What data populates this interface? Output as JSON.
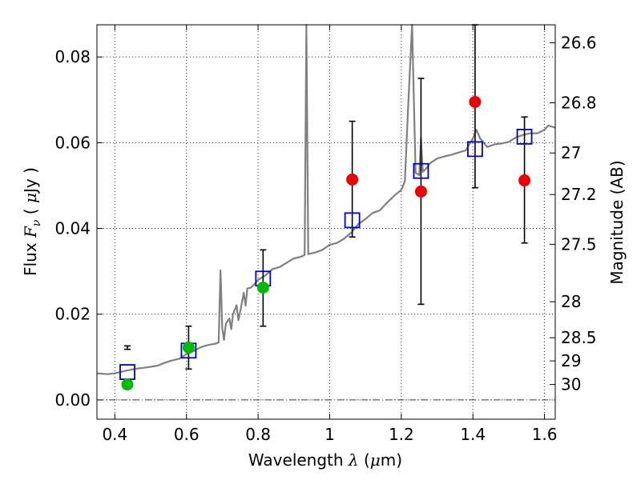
{
  "chart_data": {
    "type": "scatter",
    "title": "",
    "xlabel_parts": [
      "Wavelength  ",
      "λ",
      " (",
      "μ",
      "m)"
    ],
    "ylabel_parts": [
      "Flux  ",
      "F",
      "ν",
      "  ( ",
      "μ",
      "Jy )"
    ],
    "y2label": "Magnitude (AB)",
    "xlim": [
      0.35,
      1.63
    ],
    "ylim": [
      -0.0045,
      0.0875
    ],
    "grid": true,
    "x_ticks": [
      {
        "value": 0.4,
        "label": "0.4"
      },
      {
        "value": 0.6,
        "label": "0.6"
      },
      {
        "value": 0.8,
        "label": "0.8"
      },
      {
        "value": 1.0,
        "label": "1"
      },
      {
        "value": 1.2,
        "label": "1.2"
      },
      {
        "value": 1.4,
        "label": "1.4"
      },
      {
        "value": 1.6,
        "label": "1.6"
      }
    ],
    "y_ticks": [
      {
        "value": 0.0,
        "label": "0.00"
      },
      {
        "value": 0.02,
        "label": "0.02"
      },
      {
        "value": 0.04,
        "label": "0.04"
      },
      {
        "value": 0.06,
        "label": "0.06"
      },
      {
        "value": 0.08,
        "label": "0.08"
      }
    ],
    "y2_ticks": [
      {
        "flux": 0.0833,
        "label": "26.6"
      },
      {
        "flux": 0.0693,
        "label": "26.8"
      },
      {
        "flux": 0.0576,
        "label": "27"
      },
      {
        "flux": 0.0479,
        "label": "27.2"
      },
      {
        "flux": 0.0363,
        "label": "27.5"
      },
      {
        "flux": 0.0229,
        "label": "28"
      },
      {
        "flux": 0.0145,
        "label": "28.5"
      },
      {
        "flux": 0.0091,
        "label": "29"
      },
      {
        "flux": 0.0036,
        "label": "30"
      }
    ],
    "sed_model": {
      "color": "#808080",
      "points": [
        [
          0.35,
          0.0062
        ],
        [
          0.38,
          0.006
        ],
        [
          0.4,
          0.0062
        ],
        [
          0.43,
          0.0068
        ],
        [
          0.46,
          0.0073
        ],
        [
          0.49,
          0.0076
        ],
        [
          0.52,
          0.008
        ],
        [
          0.54,
          0.0087
        ],
        [
          0.56,
          0.0092
        ],
        [
          0.58,
          0.0096
        ],
        [
          0.6,
          0.0107
        ],
        [
          0.62,
          0.0114
        ],
        [
          0.64,
          0.0123
        ],
        [
          0.66,
          0.0128
        ],
        [
          0.68,
          0.0131
        ],
        [
          0.69,
          0.0134
        ],
        [
          0.695,
          0.0302
        ],
        [
          0.7,
          0.0167
        ],
        [
          0.705,
          0.014
        ],
        [
          0.71,
          0.0178
        ],
        [
          0.72,
          0.019
        ],
        [
          0.725,
          0.0165
        ],
        [
          0.73,
          0.02
        ],
        [
          0.74,
          0.0221
        ],
        [
          0.745,
          0.0186
        ],
        [
          0.75,
          0.0206
        ],
        [
          0.76,
          0.025
        ],
        [
          0.765,
          0.022
        ],
        [
          0.77,
          0.026
        ],
        [
          0.78,
          0.0262
        ],
        [
          0.79,
          0.027
        ],
        [
          0.8,
          0.028
        ],
        [
          0.82,
          0.029
        ],
        [
          0.84,
          0.0305
        ],
        [
          0.86,
          0.031
        ],
        [
          0.88,
          0.032
        ],
        [
          0.9,
          0.033
        ],
        [
          0.92,
          0.0334
        ],
        [
          0.93,
          0.0338
        ],
        [
          0.935,
          0.088
        ],
        [
          0.94,
          0.034
        ],
        [
          0.96,
          0.0344
        ],
        [
          0.98,
          0.035
        ],
        [
          1.0,
          0.0362
        ],
        [
          1.02,
          0.0366
        ],
        [
          1.04,
          0.0376
        ],
        [
          1.06,
          0.039
        ],
        [
          1.08,
          0.041
        ],
        [
          1.1,
          0.0422
        ],
        [
          1.12,
          0.0436
        ],
        [
          1.14,
          0.0442
        ],
        [
          1.16,
          0.046
        ],
        [
          1.18,
          0.0476
        ],
        [
          1.2,
          0.049
        ],
        [
          1.21,
          0.051
        ],
        [
          1.22,
          0.07
        ],
        [
          1.23,
          0.088
        ],
        [
          1.24,
          0.053
        ],
        [
          1.25,
          0.0524
        ],
        [
          1.255,
          0.061
        ],
        [
          1.26,
          0.0532
        ],
        [
          1.27,
          0.054
        ],
        [
          1.28,
          0.0552
        ],
        [
          1.3,
          0.0563
        ],
        [
          1.32,
          0.0568
        ],
        [
          1.34,
          0.0572
        ],
        [
          1.36,
          0.0577
        ],
        [
          1.38,
          0.0582
        ],
        [
          1.4,
          0.061
        ],
        [
          1.41,
          0.063
        ],
        [
          1.42,
          0.061
        ],
        [
          1.44,
          0.059
        ],
        [
          1.46,
          0.0596
        ],
        [
          1.48,
          0.0598
        ],
        [
          1.5,
          0.0602
        ],
        [
          1.52,
          0.0612
        ],
        [
          1.54,
          0.0618
        ],
        [
          1.56,
          0.0622
        ],
        [
          1.58,
          0.0622
        ],
        [
          1.6,
          0.063
        ],
        [
          1.61,
          0.064
        ],
        [
          1.63,
          0.0635
        ]
      ]
    },
    "series": [
      {
        "marker": "square",
        "color": "#0000cc",
        "points": [
          {
            "x": 0.435,
            "y": 0.0065
          },
          {
            "x": 0.606,
            "y": 0.0115
          },
          {
            "x": 0.814,
            "y": 0.0283
          },
          {
            "x": 1.063,
            "y": 0.0419
          },
          {
            "x": 1.255,
            "y": 0.0534
          },
          {
            "x": 1.406,
            "y": 0.0585
          },
          {
            "x": 1.544,
            "y": 0.0614
          }
        ]
      },
      {
        "marker": "circle",
        "color": "#00bb00",
        "points": [
          {
            "x": 0.435,
            "y": 0.0036,
            "err_low": 0.0126,
            "err_high": 0.0118
          },
          {
            "x": 0.606,
            "y": 0.0122,
            "err_low": 0.0072,
            "err_high": 0.0172
          },
          {
            "x": 0.814,
            "y": 0.0262,
            "err_low": 0.0172,
            "err_high": 0.035
          }
        ]
      },
      {
        "marker": "circle",
        "color": "#ee0000",
        "points": [
          {
            "x": 1.063,
            "y": 0.0514,
            "err_low": 0.038,
            "err_high": 0.065
          },
          {
            "x": 1.255,
            "y": 0.0486,
            "err_low": 0.0223,
            "err_high": 0.075
          },
          {
            "x": 1.406,
            "y": 0.0695,
            "err_low": 0.0495,
            "err_high": 0.0875
          },
          {
            "x": 1.544,
            "y": 0.0512,
            "err_low": 0.0366,
            "err_high": 0.066
          }
        ]
      }
    ]
  }
}
